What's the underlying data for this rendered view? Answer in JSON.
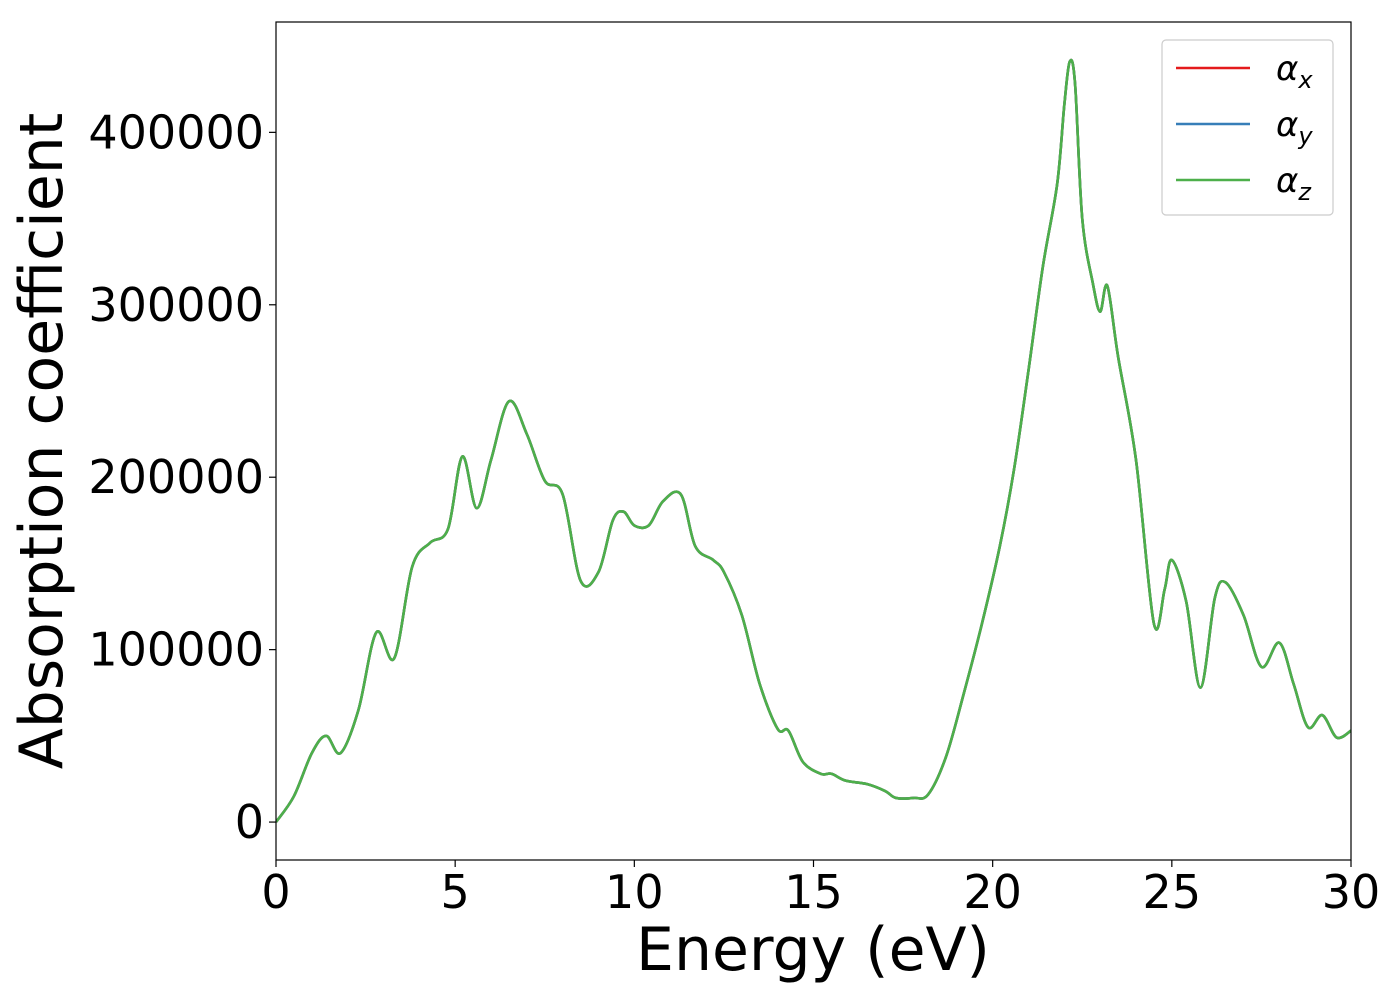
{
  "chart_data": {
    "type": "line",
    "title": "",
    "xlabel": "Energy (eV)",
    "ylabel": "Absorption coefficient",
    "xlim": [
      0,
      30
    ],
    "ylim": [
      -22000,
      464000
    ],
    "xticks": [
      0,
      5,
      10,
      15,
      20,
      25,
      30
    ],
    "xtick_labels": [
      "0",
      "5",
      "10",
      "15",
      "20",
      "25",
      "30"
    ],
    "yticks": [
      0,
      100000,
      200000,
      300000,
      400000
    ],
    "ytick_labels": [
      "0",
      "100000",
      "200000",
      "300000",
      "400000"
    ],
    "grid": false,
    "legend_position": "top-right",
    "x": [
      0,
      0.5,
      1.0,
      1.4,
      1.8,
      2.3,
      2.8,
      3.3,
      3.8,
      4.3,
      4.8,
      5.2,
      5.6,
      6.0,
      6.5,
      7.0,
      7.5,
      8.0,
      8.5,
      9.0,
      9.4,
      9.7,
      10.0,
      10.4,
      10.8,
      11.3,
      11.7,
      12.2,
      12.5,
      13.0,
      13.5,
      14.0,
      14.3,
      14.7,
      15.2,
      15.5,
      15.9,
      16.5,
      17.0,
      17.3,
      17.8,
      18.2,
      18.7,
      19.2,
      19.7,
      20.2,
      20.6,
      21.0,
      21.4,
      21.8,
      22.0,
      22.15,
      22.3,
      22.5,
      22.8,
      23.0,
      23.2,
      23.5,
      24.0,
      24.5,
      24.8,
      25.0,
      25.4,
      25.8,
      26.2,
      26.5,
      27.0,
      27.5,
      28.0,
      28.4,
      28.8,
      29.2,
      29.6,
      30.0
    ],
    "series": [
      {
        "name": "αx",
        "name_main": "α",
        "name_sub": "x",
        "color": "#e41a1c",
        "values": [
          0,
          15000,
          40000,
          50000,
          40000,
          65000,
          110000,
          95000,
          148000,
          162000,
          170000,
          212000,
          182000,
          210000,
          244000,
          225000,
          198000,
          190000,
          140000,
          145000,
          175000,
          180000,
          172000,
          172000,
          186000,
          190000,
          160000,
          152000,
          145000,
          120000,
          80000,
          54000,
          53000,
          35000,
          28000,
          28000,
          24000,
          22000,
          18000,
          14000,
          14000,
          16000,
          38000,
          75000,
          115000,
          160000,
          205000,
          262000,
          322000,
          370000,
          416000,
          441000,
          428000,
          350000,
          312000,
          296000,
          311000,
          270000,
          210000,
          115000,
          135000,
          152000,
          128000,
          78000,
          130000,
          139000,
          120000,
          90000,
          104000,
          80000,
          55000,
          62000,
          49000,
          53000
        ]
      },
      {
        "name": "αy",
        "name_main": "α",
        "name_sub": "y",
        "color": "#377eb8",
        "values": [
          0,
          15000,
          40000,
          50000,
          40000,
          65000,
          110000,
          95000,
          148000,
          162000,
          170000,
          212000,
          182000,
          210000,
          244000,
          225000,
          198000,
          190000,
          140000,
          145000,
          175000,
          180000,
          172000,
          172000,
          186000,
          190000,
          160000,
          152000,
          145000,
          120000,
          80000,
          54000,
          53000,
          35000,
          28000,
          28000,
          24000,
          22000,
          18000,
          14000,
          14000,
          16000,
          38000,
          75000,
          115000,
          160000,
          205000,
          262000,
          322000,
          370000,
          416000,
          441000,
          428000,
          350000,
          312000,
          296000,
          311000,
          270000,
          210000,
          115000,
          135000,
          152000,
          128000,
          78000,
          130000,
          139000,
          120000,
          90000,
          104000,
          80000,
          55000,
          62000,
          49000,
          53000
        ]
      },
      {
        "name": "αz",
        "name_main": "α",
        "name_sub": "z",
        "color": "#4daf4a",
        "values": [
          0,
          15000,
          40000,
          50000,
          40000,
          65000,
          110000,
          95000,
          148000,
          162000,
          170000,
          212000,
          182000,
          210000,
          244000,
          225000,
          198000,
          190000,
          140000,
          145000,
          175000,
          180000,
          172000,
          172000,
          186000,
          190000,
          160000,
          152000,
          145000,
          120000,
          80000,
          54000,
          53000,
          35000,
          28000,
          28000,
          24000,
          22000,
          18000,
          14000,
          14000,
          16000,
          38000,
          75000,
          115000,
          160000,
          205000,
          262000,
          322000,
          370000,
          416000,
          441000,
          428000,
          350000,
          312000,
          296000,
          311000,
          270000,
          210000,
          115000,
          135000,
          152000,
          128000,
          78000,
          130000,
          139000,
          120000,
          90000,
          104000,
          80000,
          55000,
          62000,
          49000,
          53000
        ]
      }
    ]
  }
}
